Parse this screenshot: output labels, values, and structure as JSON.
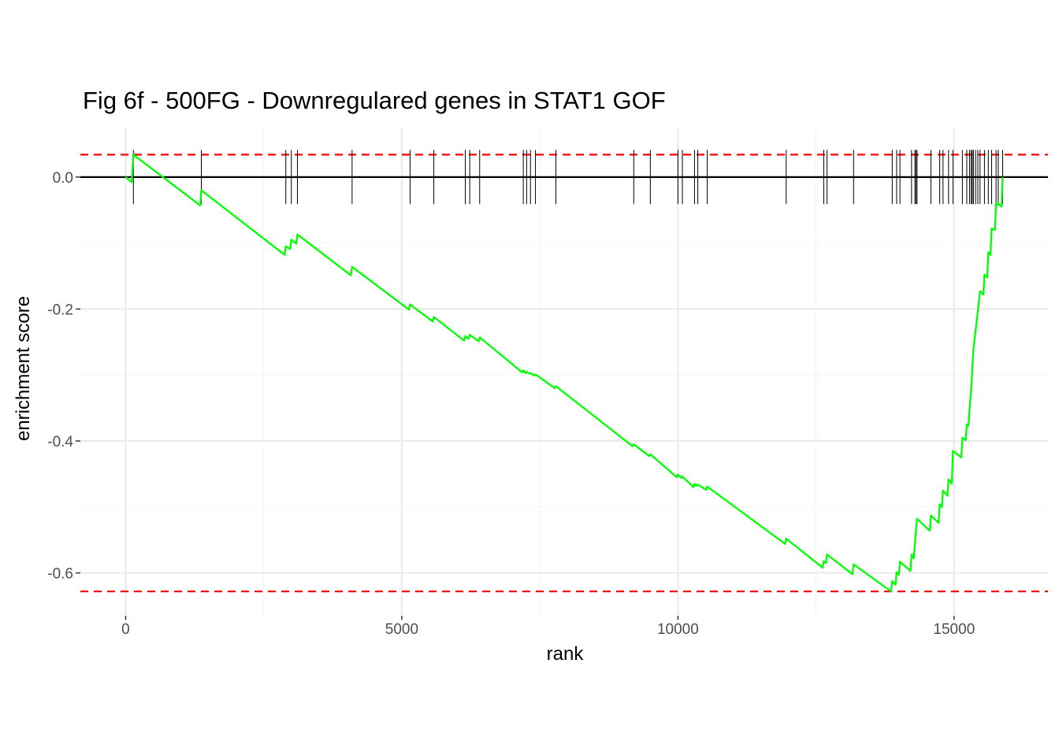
{
  "chart_data": {
    "type": "line",
    "title": "Fig 6f - 500FG - Downregulared genes in STAT1 GOF",
    "xlabel": "rank",
    "ylabel": "enrichment score",
    "xlim": [
      -820,
      16700
    ],
    "ylim": [
      -0.665,
      0.075
    ],
    "x_ticks": [
      0,
      5000,
      10000,
      15000
    ],
    "x_tick_labels": [
      "0",
      "5000",
      "10000",
      "15000"
    ],
    "y_ticks": [
      0.0,
      -0.2,
      -0.4,
      -0.6
    ],
    "y_tick_labels": [
      "0.0",
      "-0.2",
      "-0.4",
      "-0.6"
    ],
    "grid": true,
    "legend": "none",
    "colors": {
      "curve": "#00ff00",
      "bounds": "#ff0000",
      "zero_line": "#000000",
      "hits": "#000000"
    },
    "bounds": {
      "max_es": 0.034,
      "min_es": -0.628
    },
    "hit_ranks": [
      140,
      1370,
      2900,
      3000,
      3110,
      4100,
      5150,
      5580,
      6150,
      6230,
      6410,
      7200,
      7260,
      7330,
      7420,
      7790,
      9200,
      9500,
      10000,
      10080,
      10300,
      10360,
      10530,
      11960,
      12640,
      12700,
      13180,
      13880,
      13960,
      14020,
      14230,
      14290,
      14310,
      14330,
      14580,
      14740,
      14800,
      14900,
      14980,
      15150,
      15230,
      15280,
      15310,
      15330,
      15350,
      15390,
      15430,
      15470,
      15550,
      15620,
      15680,
      15760,
      15800,
      15880
    ],
    "series": [
      {
        "x": [
          0,
          110,
          140,
          1350,
          1370,
          2880,
          2900,
          2980,
          3000,
          3090,
          3110,
          4080,
          4100,
          5130,
          5150,
          5560,
          5580,
          6130,
          6150,
          6210,
          6230,
          6390,
          6410,
          7180,
          7200,
          7240,
          7260,
          7310,
          7330,
          7400,
          7420,
          7770,
          7790,
          9180,
          9200,
          9480,
          9500,
          9980,
          10000,
          10060,
          10080,
          10280,
          10300,
          10340,
          10360,
          10510,
          10530,
          11940,
          11960,
          12620,
          12640,
          12680,
          12700,
          13160,
          13180,
          13860,
          13880,
          13940,
          13960,
          14000,
          14020,
          14210,
          14230,
          14270,
          14290,
          14310,
          14330,
          14560,
          14580,
          14720,
          14740,
          14780,
          14800,
          14880,
          14900,
          14960,
          14980,
          15130,
          15150,
          15210,
          15230,
          15260,
          15280,
          15310,
          15330,
          15350,
          15390,
          15430,
          15470,
          15530,
          15550,
          15600,
          15620,
          15660,
          15680,
          15740,
          15760,
          15780,
          15800,
          15860,
          15880
        ],
        "y": [
          0.0,
          -0.008,
          0.034,
          -0.043,
          -0.02,
          -0.118,
          -0.105,
          -0.109,
          -0.095,
          -0.101,
          -0.087,
          -0.149,
          -0.136,
          -0.201,
          -0.193,
          -0.219,
          -0.212,
          -0.248,
          -0.241,
          -0.245,
          -0.239,
          -0.249,
          -0.243,
          -0.296,
          -0.293,
          -0.297,
          -0.295,
          -0.298,
          -0.297,
          -0.301,
          -0.299,
          -0.32,
          -0.317,
          -0.408,
          -0.405,
          -0.423,
          -0.42,
          -0.455,
          -0.451,
          -0.456,
          -0.454,
          -0.47,
          -0.465,
          -0.468,
          -0.466,
          -0.474,
          -0.469,
          -0.556,
          -0.548,
          -0.592,
          -0.582,
          -0.585,
          -0.572,
          -0.602,
          -0.587,
          -0.628,
          -0.612,
          -0.618,
          -0.599,
          -0.603,
          -0.583,
          -0.597,
          -0.572,
          -0.578,
          -0.555,
          -0.535,
          -0.518,
          -0.536,
          -0.513,
          -0.524,
          -0.496,
          -0.5,
          -0.475,
          -0.483,
          -0.458,
          -0.465,
          -0.415,
          -0.425,
          -0.395,
          -0.399,
          -0.375,
          -0.377,
          -0.351,
          -0.32,
          -0.29,
          -0.26,
          -0.232,
          -0.203,
          -0.173,
          -0.178,
          -0.148,
          -0.152,
          -0.114,
          -0.118,
          -0.078,
          -0.08,
          -0.04,
          -0.042,
          -0.04,
          -0.045,
          0.0
        ]
      }
    ]
  }
}
